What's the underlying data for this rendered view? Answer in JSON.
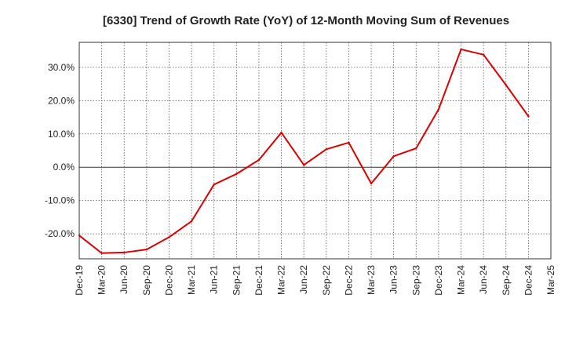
{
  "chart_data": {
    "type": "line",
    "title": "[6330]  Trend of Growth Rate (YoY) of 12-Month Moving Sum of Revenues",
    "xlabel": "",
    "ylabel": "",
    "x": [
      "Dec-19",
      "Mar-20",
      "Jun-20",
      "Sep-20",
      "Dec-20",
      "Mar-21",
      "Jun-21",
      "Sep-21",
      "Dec-21",
      "Mar-22",
      "Jun-22",
      "Sep-22",
      "Dec-22",
      "Mar-23",
      "Jun-23",
      "Sep-23",
      "Dec-23",
      "Mar-24",
      "Jun-24",
      "Sep-24",
      "Dec-24",
      "Mar-25"
    ],
    "series": [
      {
        "name": "",
        "color": "#dd0000",
        "values": [
          -20.5,
          -25.8,
          -25.6,
          -24.7,
          -21.0,
          -16.2,
          -5.2,
          -2.0,
          2.2,
          10.4,
          0.7,
          5.4,
          7.4,
          -4.9,
          3.3,
          5.7,
          17.4,
          35.4,
          33.8,
          24.7,
          15.3,
          null
        ]
      }
    ],
    "ylim": [
      -27.5,
      37.5
    ],
    "yticks": [
      -20,
      -10,
      0,
      10,
      20,
      30
    ],
    "ytick_labels": [
      "-20.0%",
      "-10.0%",
      "0.0%",
      "10.0%",
      "20.0%",
      "30.0%"
    ],
    "grid": true,
    "legend": "none"
  }
}
